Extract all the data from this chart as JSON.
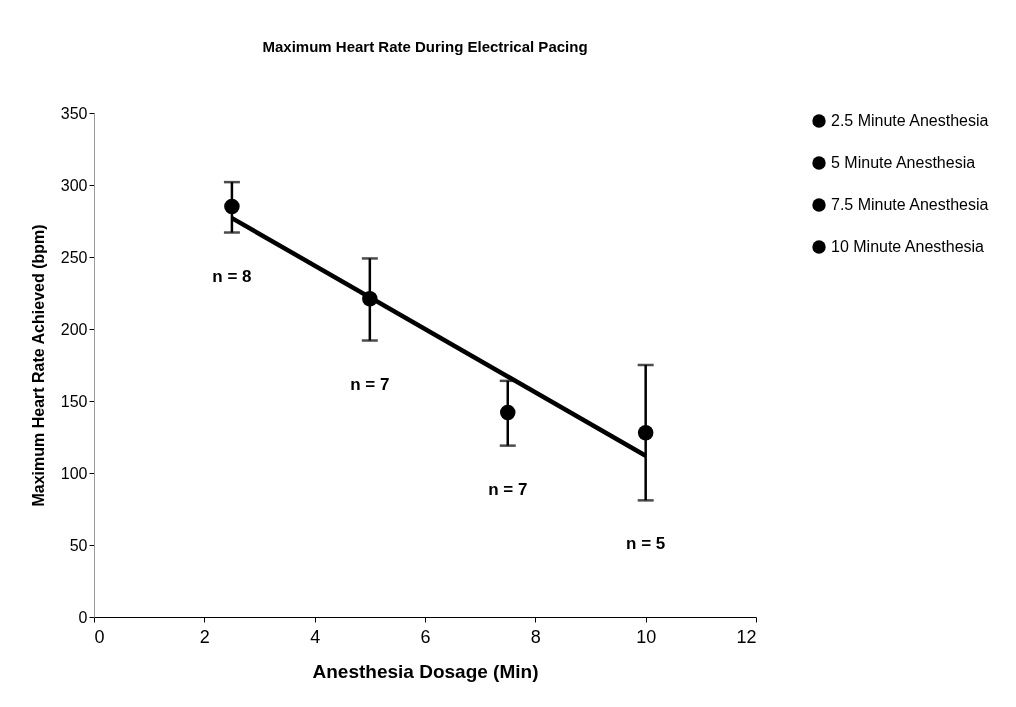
{
  "chart_data": {
    "type": "scatter",
    "title": "Maximum Heart Rate During Electrical Pacing",
    "xlabel": "Anesthesia Dosage (Min)",
    "ylabel": "Maximum Heart Rate Achieved (bpm)",
    "xlim": [
      0,
      12
    ],
    "xticks": [
      0,
      2,
      4,
      6,
      8,
      10,
      12
    ],
    "ylim": [
      0,
      350
    ],
    "yticks": [
      0,
      50,
      100,
      150,
      200,
      250,
      300,
      350
    ],
    "grid": false,
    "legend": "right",
    "marker": "circle",
    "series": [
      {
        "name": "2.5 Minute Anesthesia",
        "color": "#000000",
        "x": [
          2.5
        ],
        "values": [
          285
        ],
        "errors": [
          [
            267,
            302
          ]
        ]
      },
      {
        "name": "5 Minute Anesthesia",
        "color": "#000000",
        "x": [
          5
        ],
        "values": [
          221
        ],
        "errors": [
          [
            192,
            249
          ]
        ]
      },
      {
        "name": "7.5 Minute Anesthesia",
        "color": "#000000",
        "x": [
          7.5
        ],
        "values": [
          142
        ],
        "errors": [
          [
            119,
            164
          ]
        ]
      },
      {
        "name": "10 Minute Anesthesia",
        "color": "#000000",
        "x": [
          10
        ],
        "values": [
          128
        ],
        "errors": [
          [
            81,
            175
          ]
        ]
      },
      {
        "type": "line",
        "color": "#000000",
        "x": [
          2.5,
          10
        ],
        "values": [
          277,
          112
        ],
        "line_style": "solid",
        "marker": "none"
      }
    ],
    "annotations": [
      {
        "text": "n = 8",
        "x": 2.5,
        "y": 267
      },
      {
        "text": "n = 7",
        "x": 5,
        "y": 192
      },
      {
        "text": "n = 7",
        "x": 7.5,
        "y": 119
      },
      {
        "text": "n = 5",
        "x": 10,
        "y": 81
      }
    ]
  }
}
